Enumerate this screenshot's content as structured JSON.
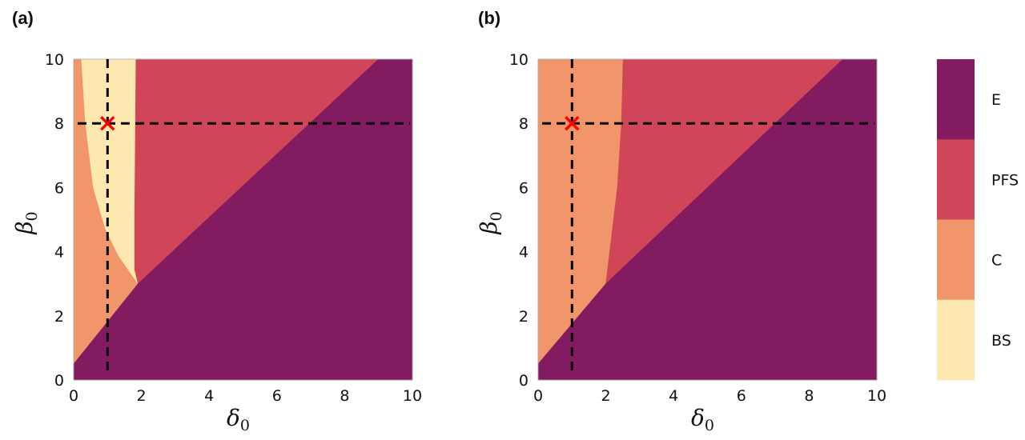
{
  "colors": {
    "E": "#831b60",
    "PFS": "#d04658",
    "C": "#f1956a",
    "BS": "#fde9b0"
  },
  "legend": {
    "type": "colorbar",
    "position": "right",
    "entries": [
      "E",
      "PFS",
      "C",
      "BS"
    ]
  },
  "chart_data": [
    {
      "panel_label": "(a)",
      "type": "area",
      "xlabel": "δ",
      "xlabel_sub": "0",
      "ylabel": "β",
      "ylabel_sub": "0",
      "xlim": [
        0,
        10
      ],
      "ylim": [
        0,
        10
      ],
      "xticks": [
        "0",
        "2",
        "4",
        "6",
        "8",
        "10"
      ],
      "yticks": [
        "0",
        "2",
        "4",
        "6",
        "8",
        "10"
      ],
      "regions": [
        {
          "name": "C",
          "polygon": [
            [
              0,
              0.5
            ],
            [
              1.9,
              3.0
            ],
            [
              1.9,
              10
            ],
            [
              0,
              10
            ]
          ]
        },
        {
          "name": "BS",
          "polygon": [
            [
              0.23,
              10
            ],
            [
              0.35,
              8
            ],
            [
              0.58,
              6
            ],
            [
              0.94,
              4.7
            ],
            [
              1.33,
              3.87
            ],
            [
              1.9,
              3.0
            ],
            [
              1.8,
              3.45
            ],
            [
              1.8,
              5
            ],
            [
              1.84,
              10
            ]
          ]
        },
        {
          "name": "PFS",
          "polygon": [
            [
              1.84,
              10
            ],
            [
              1.8,
              5
            ],
            [
              1.8,
              3.45
            ],
            [
              1.9,
              3.0
            ],
            [
              9,
              10
            ]
          ]
        },
        {
          "name": "E",
          "polygon": [
            [
              0,
              0
            ],
            [
              0,
              0.5
            ],
            [
              1.9,
              3.0
            ],
            [
              9,
              10
            ],
            [
              10,
              10
            ],
            [
              10,
              0
            ]
          ]
        }
      ],
      "dashed_lines": {
        "x": 1,
        "y": 8
      },
      "marker": {
        "x": 1,
        "y": 8,
        "symbol": "x",
        "color": "#ff0000"
      }
    },
    {
      "panel_label": "(b)",
      "type": "area",
      "xlabel": "δ",
      "xlabel_sub": "0",
      "ylabel": "β",
      "ylabel_sub": "0",
      "xlim": [
        0,
        10
      ],
      "ylim": [
        0,
        10
      ],
      "xticks": [
        "0",
        "2",
        "4",
        "6",
        "8",
        "10"
      ],
      "yticks": [
        "0",
        "2",
        "4",
        "6",
        "8",
        "10"
      ],
      "regions": [
        {
          "name": "C",
          "polygon": [
            [
              0,
              0.5
            ],
            [
              2.0,
              3.0
            ],
            [
              2.17,
              4.5
            ],
            [
              2.34,
              6
            ],
            [
              2.46,
              8
            ],
            [
              2.51,
              10
            ],
            [
              0,
              10
            ]
          ]
        },
        {
          "name": "PFS",
          "polygon": [
            [
              2.51,
              10
            ],
            [
              2.46,
              8
            ],
            [
              2.34,
              6
            ],
            [
              2.17,
              4.5
            ],
            [
              2.0,
              3.0
            ],
            [
              9,
              10
            ]
          ]
        },
        {
          "name": "E",
          "polygon": [
            [
              0,
              0
            ],
            [
              0,
              0.5
            ],
            [
              2.0,
              3.0
            ],
            [
              9,
              10
            ],
            [
              10,
              10
            ],
            [
              10,
              0
            ]
          ]
        }
      ],
      "dashed_lines": {
        "x": 1,
        "y": 8
      },
      "marker": {
        "x": 1,
        "y": 8,
        "symbol": "x",
        "color": "#ff0000"
      }
    }
  ]
}
